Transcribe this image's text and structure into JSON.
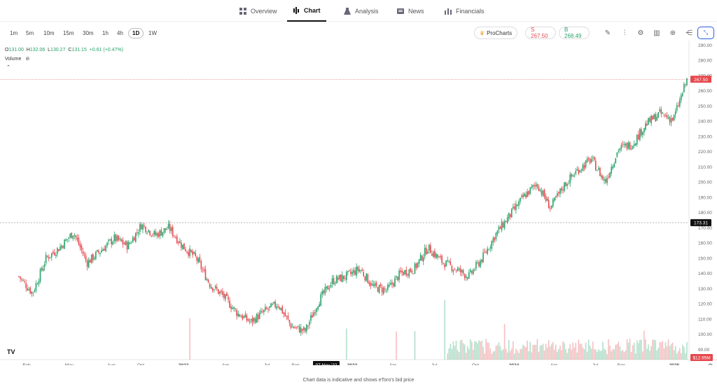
{
  "nav": {
    "tabs": [
      {
        "label": "Overview",
        "icon": "grid-icon"
      },
      {
        "label": "Chart",
        "icon": "chart-icon"
      },
      {
        "label": "Analysis",
        "icon": "flask-icon"
      },
      {
        "label": "News",
        "icon": "news-icon"
      },
      {
        "label": "Financials",
        "icon": "bar-icon"
      }
    ],
    "active": "Chart"
  },
  "toolbar": {
    "timeframes": [
      "1m",
      "5m",
      "10m",
      "15m",
      "30m",
      "1h",
      "4h",
      "1D",
      "1W"
    ],
    "active_timeframe": "1D",
    "procharts_label": "ProCharts",
    "sell_label": "S 267.50",
    "buy_label": "B 268.49",
    "tools": [
      "pencil-icon",
      "indicators-icon",
      "settings-icon",
      "bar-chart-icon",
      "plus-icon",
      "share-icon"
    ],
    "expand_icon": "collapse-icon"
  },
  "legend": {
    "o_label": "O",
    "o_value": "131.00",
    "h_label": "H",
    "h_value": "132.06",
    "l_label": "L",
    "l_value": "130.27",
    "c_label": "C",
    "c_value": "131.15",
    "change": "+0.61 (+0.47%)",
    "volume_label": "Volume",
    "volume_icon": "eye-off-icon"
  },
  "footer": "Chart data is indicative and shows eToro's bid price",
  "colors": {
    "up": "#26a269",
    "down": "#e5484d",
    "accent": "#2b5ce6"
  },
  "chart_data": {
    "type": "candlestick",
    "x_ticks": [
      "Feb",
      "May",
      "Aug",
      "Oct",
      "2022",
      "Apr",
      "Jul",
      "Sep",
      "07 Nov '22",
      "2023",
      "Apr",
      "Jul",
      "Oct",
      "2024",
      "Apr",
      "Jul",
      "Sep",
      "2025"
    ],
    "y_ticks": [
      "290.00",
      "280.00",
      "270.00",
      "260.00",
      "250.00",
      "240.00",
      "230.00",
      "220.00",
      "210.00",
      "200.00",
      "190.00",
      "180.00",
      "170.00",
      "160.00",
      "150.00",
      "140.00",
      "130.00",
      "120.00",
      "110.00",
      "100.00",
      "90.00"
    ],
    "ylim": [
      87,
      292
    ],
    "price_label": "267.50",
    "crosshair_label": "173.31",
    "volume_label": "$12.95M",
    "series": [
      {
        "t": "2021-01",
        "close": 138
      },
      {
        "t": "2021-02",
        "close": 127
      },
      {
        "t": "2021-03",
        "close": 150
      },
      {
        "t": "2021-04",
        "close": 157
      },
      {
        "t": "2021-05",
        "close": 167
      },
      {
        "t": "2021-06",
        "close": 147
      },
      {
        "t": "2021-07",
        "close": 155
      },
      {
        "t": "2021-08",
        "close": 163
      },
      {
        "t": "2021-09",
        "close": 158
      },
      {
        "t": "2021-10",
        "close": 172
      },
      {
        "t": "2021-11",
        "close": 165
      },
      {
        "t": "2021-12",
        "close": 170
      },
      {
        "t": "2022-01",
        "close": 158
      },
      {
        "t": "2022-02",
        "close": 150
      },
      {
        "t": "2022-03",
        "close": 133
      },
      {
        "t": "2022-04",
        "close": 125
      },
      {
        "t": "2022-05",
        "close": 114
      },
      {
        "t": "2022-06",
        "close": 108
      },
      {
        "t": "2022-07",
        "close": 115
      },
      {
        "t": "2022-08",
        "close": 120
      },
      {
        "t": "2022-09",
        "close": 105
      },
      {
        "t": "2022-10",
        "close": 102
      },
      {
        "t": "2022-11",
        "close": 122
      },
      {
        "t": "2022-12",
        "close": 135
      },
      {
        "t": "2023-01",
        "close": 138
      },
      {
        "t": "2023-02",
        "close": 143
      },
      {
        "t": "2023-03",
        "close": 131
      },
      {
        "t": "2023-04",
        "close": 129
      },
      {
        "t": "2023-05",
        "close": 140
      },
      {
        "t": "2023-06",
        "close": 143
      },
      {
        "t": "2023-07",
        "close": 157
      },
      {
        "t": "2023-08",
        "close": 148
      },
      {
        "t": "2023-09",
        "close": 143
      },
      {
        "t": "2023-10",
        "close": 138
      },
      {
        "t": "2023-11",
        "close": 150
      },
      {
        "t": "2023-12",
        "close": 166
      },
      {
        "t": "2024-01",
        "close": 178
      },
      {
        "t": "2024-02",
        "close": 190
      },
      {
        "t": "2024-03",
        "close": 199
      },
      {
        "t": "2024-04",
        "close": 183
      },
      {
        "t": "2024-05",
        "close": 198
      },
      {
        "t": "2024-06",
        "close": 208
      },
      {
        "t": "2024-07",
        "close": 215
      },
      {
        "t": "2024-08",
        "close": 200
      },
      {
        "t": "2024-09",
        "close": 222
      },
      {
        "t": "2024-10",
        "close": 225
      },
      {
        "t": "2024-11",
        "close": 238
      },
      {
        "t": "2024-12",
        "close": 245
      },
      {
        "t": "2025-01",
        "close": 241
      },
      {
        "t": "2025-02",
        "close": 267
      }
    ]
  }
}
